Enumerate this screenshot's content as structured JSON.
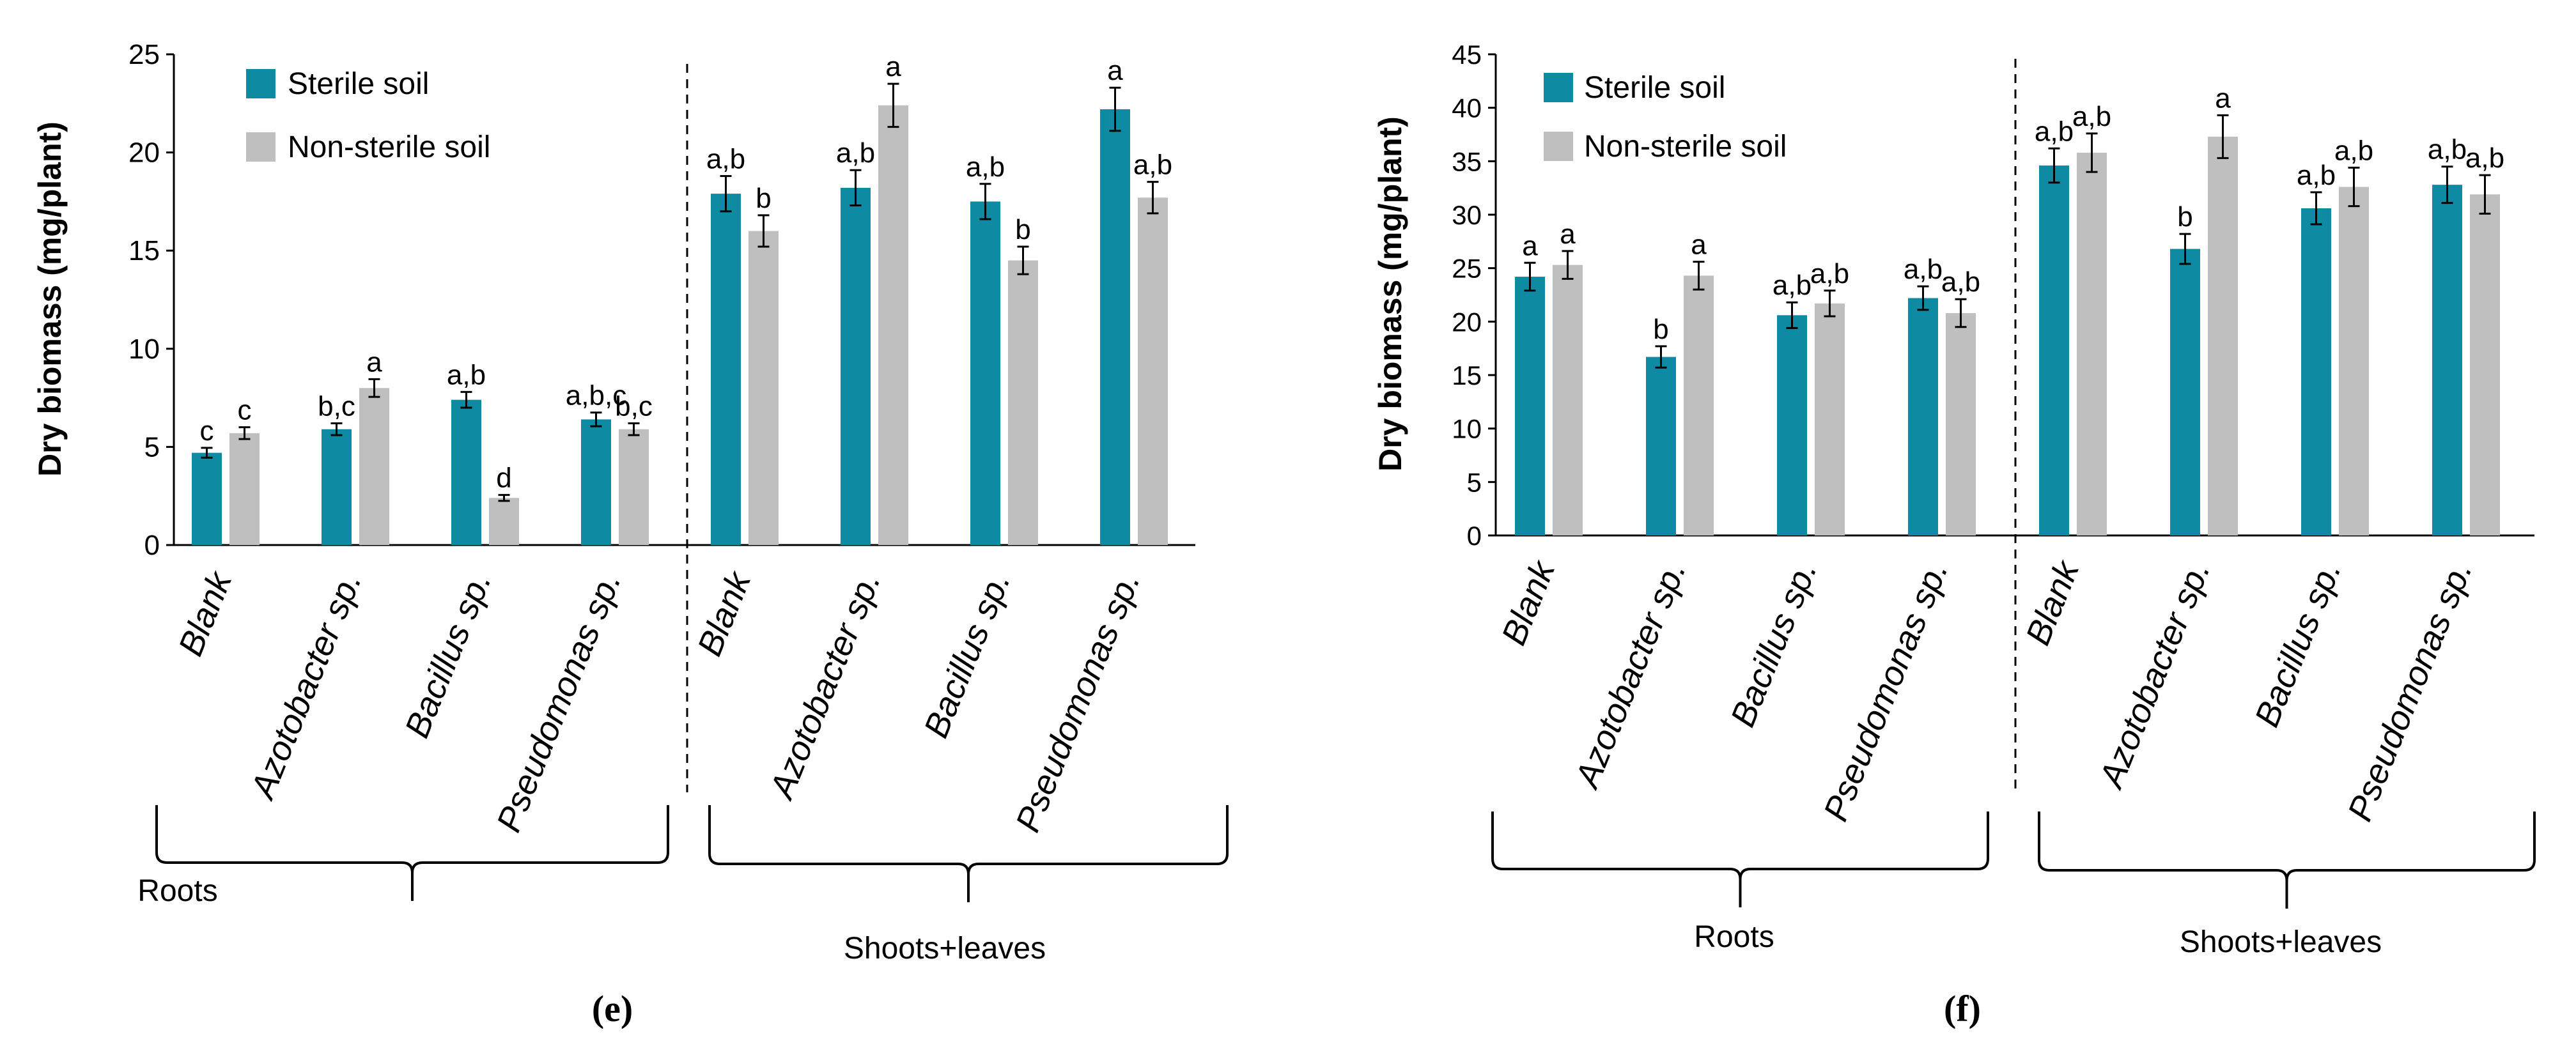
{
  "colors": {
    "sterile": "#0e8aa3",
    "nonsterile": "#bfbfbf",
    "axis": "#000000",
    "ylabel": "#595959"
  },
  "chart_data": [
    {
      "type": "bar",
      "panel_label": "(e)",
      "ylabel": "Dry biomass  (mg/plant)",
      "ylim": [
        0,
        25
      ],
      "yticks": [
        0,
        5,
        10,
        15,
        20,
        25
      ],
      "ytick_labels": [
        "0",
        "5",
        "10",
        "15",
        "20",
        "25"
      ],
      "categories": [
        "Blank",
        "Azotobacter sp.",
        "Bacillus sp.",
        "Pseudomonas sp.",
        "Blank",
        "Azotobacter sp.",
        "Bacillus sp.",
        "Pseudomonas sp."
      ],
      "groups": [
        "Roots",
        "Shoots+leaves"
      ],
      "legend": [
        "Sterile soil",
        "Non-sterile soil"
      ],
      "series": [
        {
          "name": "Sterile soil",
          "values": [
            4.7,
            5.9,
            7.4,
            6.4,
            17.9,
            18.2,
            17.5,
            22.2
          ],
          "errors": [
            0.25,
            0.3,
            0.4,
            0.35,
            0.9,
            0.9,
            0.9,
            1.1
          ],
          "labels": [
            "c",
            "b,c",
            "a,b",
            "a,b,c",
            "a,b",
            "a,b",
            "a,b",
            "a"
          ]
        },
        {
          "name": "Non-sterile soil",
          "values": [
            5.7,
            8.0,
            2.4,
            5.9,
            16.0,
            22.4,
            14.5,
            17.7
          ],
          "errors": [
            0.3,
            0.45,
            0.15,
            0.3,
            0.8,
            1.1,
            0.7,
            0.8
          ],
          "labels": [
            "c",
            "a",
            "d",
            "b,c",
            "b",
            "a",
            "b",
            "a,b"
          ]
        }
      ]
    },
    {
      "type": "bar",
      "panel_label": "(f)",
      "ylabel": "Dry biomass (mg/plant)",
      "ylim": [
        0,
        45
      ],
      "yticks": [
        0,
        5,
        10,
        15,
        20,
        25,
        30,
        35,
        40,
        45
      ],
      "ytick_labels": [
        "0",
        "5",
        "10",
        "15",
        "20",
        "25",
        "30",
        "35",
        "40",
        "45"
      ],
      "categories": [
        "Blank",
        "Azotobacter sp.",
        "Bacillus sp.",
        "Pseudomonas sp.",
        "Blank",
        "Azotobacter sp.",
        "Bacillus sp.",
        "Pseudomonas sp."
      ],
      "groups": [
        "Roots",
        "Shoots+leaves"
      ],
      "legend": [
        "Sterile soil",
        "Non-sterile soil"
      ],
      "series": [
        {
          "name": "Sterile soil",
          "values": [
            24.2,
            16.7,
            20.6,
            22.2,
            34.6,
            26.8,
            30.6,
            32.8
          ],
          "errors": [
            1.3,
            1.0,
            1.2,
            1.1,
            1.6,
            1.4,
            1.5,
            1.7
          ],
          "labels": [
            "a",
            "b",
            "a,b",
            "a,b",
            "a,b",
            "b",
            "a,b",
            "a,b"
          ]
        },
        {
          "name": "Non-sterile soil",
          "values": [
            25.3,
            24.3,
            21.7,
            20.8,
            35.8,
            37.3,
            32.6,
            31.9
          ],
          "errors": [
            1.3,
            1.3,
            1.2,
            1.3,
            1.8,
            2.0,
            1.8,
            1.8
          ],
          "labels": [
            "a",
            "a",
            "a,b",
            "a,b",
            "a,b",
            "a",
            "a,b",
            "a,b"
          ]
        }
      ]
    }
  ]
}
